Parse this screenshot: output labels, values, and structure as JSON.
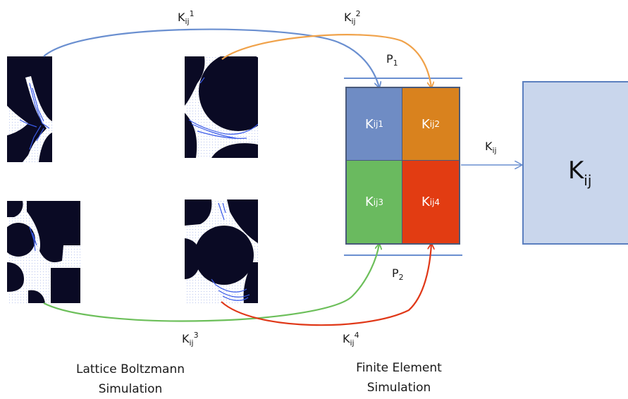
{
  "symbol": {
    "base": "K",
    "sub": "ij"
  },
  "arrow_labels": {
    "k1_sup": "1",
    "k2_sup": "2",
    "k3_sup": "3",
    "k4_sup": "4",
    "out": "K"
  },
  "pressure": {
    "p1_base": "P",
    "p1_sub": "1",
    "p2_base": "P",
    "p2_sub": "2"
  },
  "cells": [
    {
      "sup": "1",
      "color": "#6f8cc4"
    },
    {
      "sup": "2",
      "color": "#d9821e"
    },
    {
      "sup": "3",
      "color": "#6aba5f"
    },
    {
      "sup": "4",
      "color": "#e23c12"
    }
  ],
  "result": {
    "base": "K",
    "sub": "ij"
  },
  "captions": {
    "lbm_line1": "Lattice Boltzmann",
    "lbm_line2": "Simulation",
    "fem_line1": "Finite Element",
    "fem_line2": "Simulation"
  },
  "colors": {
    "arrow_blue": "#6a8fd0",
    "arrow_orange": "#f0a24a",
    "arrow_green": "#6cbf5a",
    "arrow_red": "#e03818",
    "grid_border": "#4a5a7a",
    "pore_black": "#0a0a24",
    "fluid_blue": "#3a5ae8"
  }
}
